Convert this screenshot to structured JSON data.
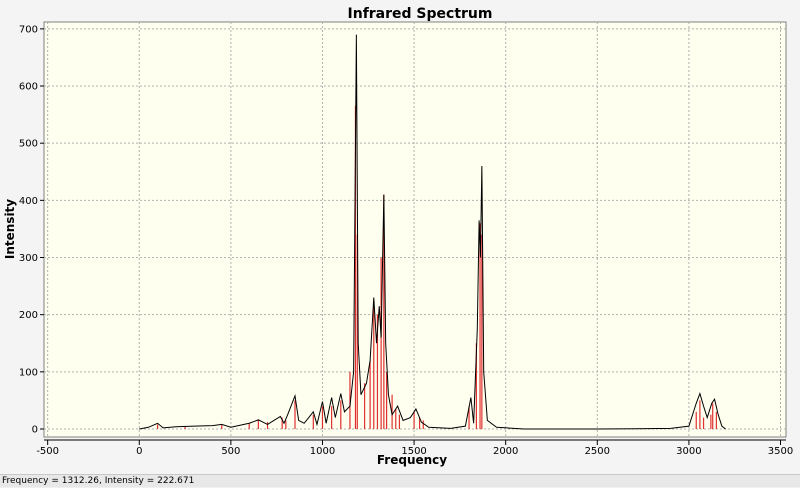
{
  "chart_data": {
    "type": "spectrum",
    "title": "Infrared Spectrum",
    "x_label": "Frequency",
    "y_label": "Intensity",
    "xlim": [
      -520,
      3530
    ],
    "ylim": [
      -14,
      712
    ],
    "xticks": [
      -500,
      0,
      500,
      1000,
      1500,
      2000,
      2500,
      3000,
      3500
    ],
    "yticks": [
      0,
      100,
      200,
      300,
      400,
      500,
      600,
      700
    ],
    "grid": true,
    "spectrum": {
      "color": "#000000",
      "x": [
        0,
        50,
        100,
        130,
        200,
        300,
        400,
        450,
        500,
        600,
        650,
        700,
        770,
        790,
        810,
        850,
        870,
        900,
        950,
        970,
        1000,
        1020,
        1050,
        1070,
        1100,
        1120,
        1150,
        1170,
        1185,
        1195,
        1210,
        1240,
        1260,
        1280,
        1295,
        1310,
        1320,
        1335,
        1345,
        1360,
        1380,
        1410,
        1440,
        1480,
        1510,
        1540,
        1580,
        1700,
        1780,
        1810,
        1825,
        1845,
        1855,
        1862,
        1870,
        1880,
        1900,
        1950,
        2100,
        2500,
        2900,
        3000,
        3040,
        3060,
        3080,
        3100,
        3125,
        3140,
        3160,
        3180,
        3200
      ],
      "y": [
        0,
        3,
        10,
        2,
        4,
        5,
        6,
        8,
        3,
        10,
        16,
        8,
        22,
        10,
        25,
        58,
        15,
        10,
        30,
        8,
        48,
        10,
        55,
        20,
        62,
        30,
        40,
        100,
        690,
        150,
        60,
        80,
        120,
        230,
        150,
        215,
        160,
        410,
        150,
        60,
        25,
        40,
        15,
        20,
        35,
        12,
        3,
        1,
        5,
        55,
        10,
        175,
        365,
        300,
        460,
        100,
        15,
        3,
        0,
        0,
        1,
        5,
        45,
        62,
        40,
        20,
        45,
        52,
        25,
        5,
        0
      ]
    },
    "sticks": {
      "color": "#e03030",
      "x": [
        100,
        250,
        450,
        600,
        650,
        700,
        780,
        800,
        850,
        950,
        1000,
        1050,
        1100,
        1150,
        1180,
        1190,
        1230,
        1260,
        1280,
        1300,
        1320,
        1335,
        1350,
        1380,
        1400,
        1420,
        1500,
        1530,
        1550,
        1800,
        1840,
        1860,
        1870,
        3040,
        3060,
        3080,
        3120,
        3130,
        3150
      ],
      "values": [
        8,
        5,
        8,
        10,
        15,
        12,
        20,
        15,
        50,
        25,
        40,
        40,
        50,
        100,
        565,
        340,
        80,
        120,
        220,
        200,
        300,
        410,
        100,
        60,
        35,
        25,
        30,
        20,
        15,
        40,
        150,
        360,
        340,
        30,
        50,
        20,
        25,
        45,
        30
      ]
    }
  },
  "status_bar": {
    "text": "Frequency = 1312.26,  Intensity = 222.671"
  }
}
